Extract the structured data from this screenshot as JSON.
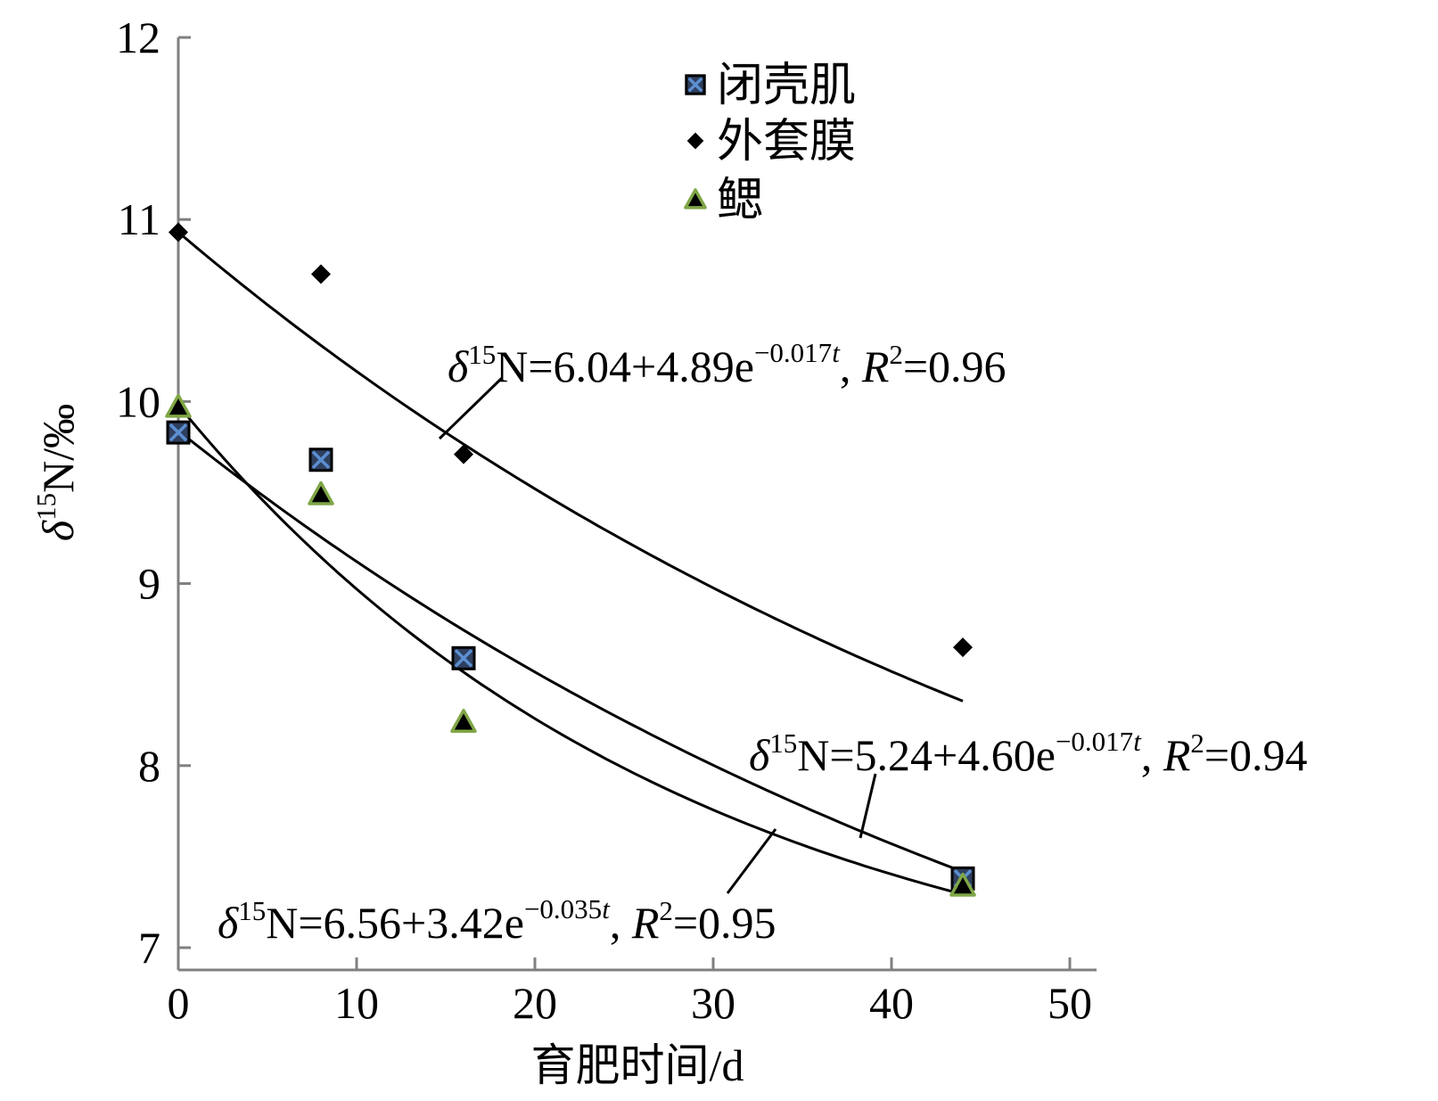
{
  "chart_data": {
    "type": "scatter",
    "xlabel": "育肥时间/d",
    "ylabel": "δ15N/‰",
    "ylabel_parts": {
      "symbol": "δ",
      "sup": "15",
      "rest": "N/‰"
    },
    "xlim": [
      0,
      50
    ],
    "ylim": [
      7,
      12
    ],
    "xticks": [
      "0",
      "10",
      "20",
      "30",
      "40",
      "50"
    ],
    "yticks": [
      "7",
      "8",
      "9",
      "10",
      "11",
      "12"
    ],
    "grid": false,
    "legend_position": "top-center",
    "series": [
      {
        "name": "闭壳肌",
        "marker": "square-x",
        "x": [
          0,
          8,
          16,
          44
        ],
        "y": [
          9.83,
          9.68,
          8.59,
          7.38
        ]
      },
      {
        "name": "外套膜",
        "marker": "diamond",
        "x": [
          0,
          8,
          16,
          44
        ],
        "y": [
          10.93,
          10.7,
          9.71,
          8.65
        ]
      },
      {
        "name": "鳃",
        "marker": "triangle",
        "x": [
          0,
          8,
          16,
          44
        ],
        "y": [
          9.97,
          9.49,
          8.24,
          7.34
        ]
      }
    ],
    "fits": [
      {
        "series": "外套膜",
        "a": 6.04,
        "b": 4.89,
        "k": 0.017,
        "t_range": [
          0,
          44
        ]
      },
      {
        "series": "闭壳肌",
        "a": 5.24,
        "b": 4.6,
        "k": 0.017,
        "t_range": [
          0,
          44
        ]
      },
      {
        "series": "鳃",
        "a": 6.56,
        "b": 3.42,
        "k": 0.035,
        "t_range": [
          0,
          44
        ]
      }
    ],
    "annotations": [
      {
        "delta": "δ",
        "sup15": "15",
        "main": "N=6.04+4.89e",
        "exp": "−0.017",
        "expvar": "t",
        "comma": ", ",
        "r": "R",
        "rsup": "2",
        "rval": "=0.96"
      },
      {
        "delta": "δ",
        "sup15": "15",
        "main": "N=5.24+4.60e",
        "exp": "−0.017",
        "expvar": "t",
        "comma": ", ",
        "r": "R",
        "rsup": "2",
        "rval": "=0.94"
      },
      {
        "delta": "δ",
        "sup15": "15",
        "main": "N=6.56+3.42e",
        "exp": "−0.035",
        "expvar": "t",
        "comma": ", ",
        "r": "R",
        "rsup": "2",
        "rval": "=0.95"
      }
    ],
    "colors": {
      "axis": "#808080",
      "square_fill": "#2f3f5f",
      "square_x": "#5b8fd1",
      "triangle_fill": "#000000",
      "triangle_stroke": "#7fa646",
      "diamond": "#000000",
      "curve": "#000000"
    }
  }
}
